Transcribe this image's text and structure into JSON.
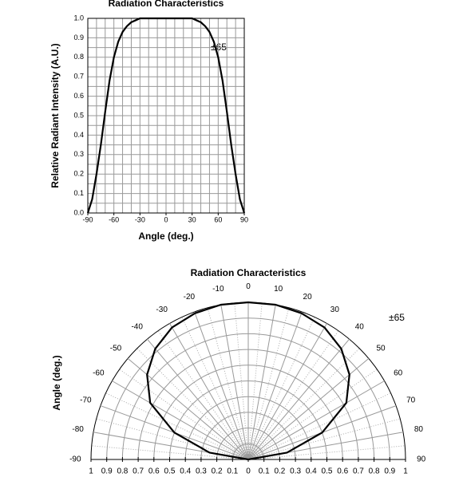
{
  "chart_data": [
    {
      "type": "line",
      "title": "Radiation Characteristics",
      "x_label": "Angle (deg.)",
      "y_label": "Relative Radiant Intensity (A.U.)",
      "annotation": "±65",
      "x": [
        -90,
        -85,
        -80,
        -75,
        -70,
        -65,
        -60,
        -55,
        -50,
        -45,
        -40,
        -35,
        -30,
        -25,
        -20,
        -15,
        -10,
        -5,
        0,
        5,
        10,
        15,
        20,
        25,
        30,
        35,
        40,
        45,
        50,
        55,
        60,
        65,
        70,
        75,
        80,
        85,
        90
      ],
      "series": [
        {
          "color": "#000000",
          "values": [
            0,
            0.07,
            0.2,
            0.35,
            0.52,
            0.68,
            0.8,
            0.88,
            0.93,
            0.96,
            0.98,
            0.99,
            1.0,
            1.0,
            1.0,
            1.0,
            1.0,
            1.0,
            1.0,
            1.0,
            1.0,
            1.0,
            1.0,
            1.0,
            1.0,
            0.99,
            0.98,
            0.96,
            0.93,
            0.88,
            0.8,
            0.68,
            0.52,
            0.35,
            0.2,
            0.07,
            0
          ]
        }
      ],
      "xlim": [
        -90,
        90
      ],
      "xticks": [
        -90,
        -60,
        -30,
        0,
        30,
        60,
        90
      ],
      "ylim": [
        0,
        1
      ],
      "yticks": [
        {
          "value": 0,
          "label": "0.0"
        },
        0.1,
        0.2,
        0.3,
        0.4,
        0.5,
        0.6,
        0.7,
        0.8,
        0.9,
        {
          "value": 1,
          "label": "1.0"
        }
      ],
      "grid": true
    },
    {
      "type": "polar",
      "title": "Radiation Characteristics",
      "y_label": "Angle (deg.)",
      "annotation": "±65",
      "theta": [
        -90,
        -80,
        -70,
        -60,
        -50,
        -40,
        -30,
        -20,
        -10,
        0,
        10,
        20,
        30,
        40,
        50,
        60,
        70,
        80,
        90
      ],
      "series": [
        {
          "color": "#000000",
          "values": [
            0,
            0.25,
            0.5,
            0.72,
            0.84,
            0.92,
            0.97,
            0.99,
            1.0,
            1.0,
            1.0,
            0.99,
            0.97,
            0.92,
            0.84,
            0.72,
            0.5,
            0.25,
            0
          ]
        }
      ],
      "thetaticks": [
        -90,
        -80,
        -70,
        -60,
        -50,
        -40,
        -30,
        -20,
        -10,
        0,
        10,
        20,
        30,
        40,
        50,
        60,
        70,
        80,
        90
      ],
      "rlim": [
        0,
        1
      ],
      "rticks": [
        0,
        0.1,
        0.2,
        0.3,
        0.4,
        0.5,
        0.6,
        0.7,
        0.8,
        0.9,
        1
      ],
      "grid": true
    }
  ]
}
